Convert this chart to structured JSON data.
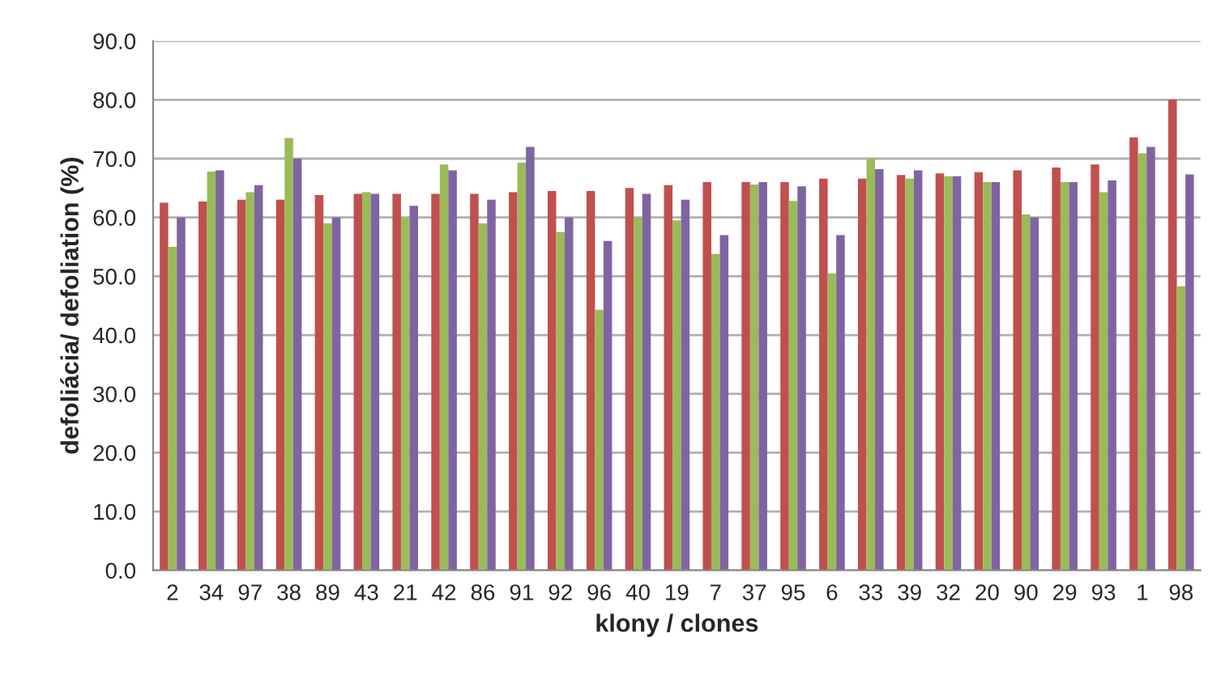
{
  "chart_data": {
    "type": "bar",
    "xlabel": "klony / clones",
    "ylabel": "defoliácia/ defoliation (%)",
    "categories": [
      "2",
      "34",
      "97",
      "38",
      "89",
      "43",
      "21",
      "42",
      "86",
      "91",
      "92",
      "96",
      "40",
      "19",
      "7",
      "37",
      "95",
      "6",
      "33",
      "39",
      "32",
      "20",
      "90",
      "29",
      "93",
      "1",
      "98"
    ],
    "series": [
      {
        "color": "#c0504d",
        "values": [
          62.5,
          62.7,
          63,
          63,
          63.8,
          64,
          64,
          64,
          64,
          64.3,
          64.5,
          64.5,
          65,
          65.5,
          66,
          66,
          66,
          66.6,
          66.6,
          67.2,
          67.5,
          67.7,
          68,
          68.5,
          69,
          73.6,
          80
        ]
      },
      {
        "color": "#9bbb59",
        "values": [
          55,
          67.8,
          64.3,
          73.5,
          59,
          64.3,
          60,
          69,
          59,
          69.3,
          57.5,
          44.3,
          60,
          59.5,
          53.8,
          65.6,
          62.8,
          50.5,
          70,
          66.6,
          67,
          66,
          60.5,
          66,
          64.3,
          70.9,
          48.3
        ]
      },
      {
        "color": "#8064a2",
        "values": [
          60,
          68,
          65.5,
          70,
          60,
          64,
          62,
          68,
          63,
          72,
          60,
          56,
          64,
          63,
          57,
          66,
          65.3,
          57,
          68.2,
          68,
          67,
          66,
          60,
          66,
          66.3,
          72,
          67.3
        ]
      }
    ],
    "ylim": [
      0,
      90
    ],
    "yticks": [
      {
        "value": 0,
        "label": "0.0"
      },
      {
        "value": 10,
        "label": "10.0"
      },
      {
        "value": 20,
        "label": "20.0"
      },
      {
        "value": 30,
        "label": "30.0"
      },
      {
        "value": 40,
        "label": "40.0"
      },
      {
        "value": 50,
        "label": "50.0"
      },
      {
        "value": 60,
        "label": "60.0"
      },
      {
        "value": 70,
        "label": "70.0"
      },
      {
        "value": 80,
        "label": "80.0"
      },
      {
        "value": 90,
        "label": "90.0"
      }
    ],
    "grid": "y"
  }
}
